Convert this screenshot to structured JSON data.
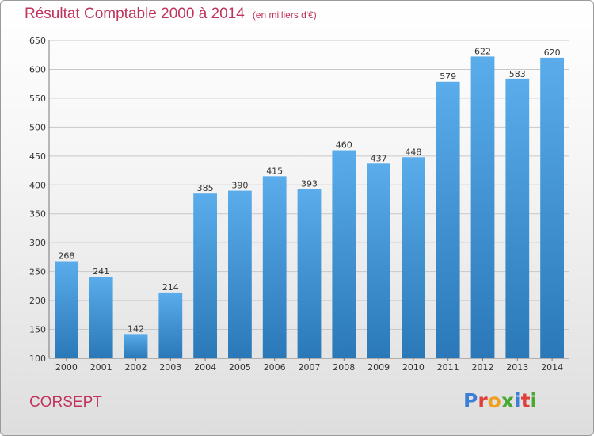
{
  "title": "Résultat Comptable 2000 à 2014",
  "subtitle": "(en milliers d'€)",
  "location": "CORSEPT",
  "logo": {
    "text": "Proxiti",
    "letter_colors": [
      "#3a7fd5",
      "#e0403c",
      "#f0a020",
      "#4aa832",
      "#3a7fd5",
      "#e0403c",
      "#4aa832"
    ]
  },
  "colors": {
    "bar_top": "#5aaceb",
    "bar_bottom": "#2a78b8",
    "title": "#c0335a",
    "grid": "#c8c8c8"
  },
  "chart_data": {
    "type": "bar",
    "title": "Résultat Comptable 2000 à 2014",
    "subtitle": "(en milliers d'€)",
    "categories": [
      "2000",
      "2001",
      "2002",
      "2003",
      "2004",
      "2005",
      "2006",
      "2007",
      "2008",
      "2009",
      "2010",
      "2011",
      "2012",
      "2013",
      "2014"
    ],
    "values": [
      268,
      241,
      142,
      214,
      385,
      390,
      415,
      393,
      460,
      437,
      448,
      579,
      622,
      583,
      620
    ],
    "xlabel": "",
    "ylabel": "",
    "ylim": [
      100,
      650
    ],
    "yticks": [
      100,
      150,
      200,
      250,
      300,
      350,
      400,
      450,
      500,
      550,
      600,
      650
    ],
    "grid": true,
    "data_labels": true
  }
}
